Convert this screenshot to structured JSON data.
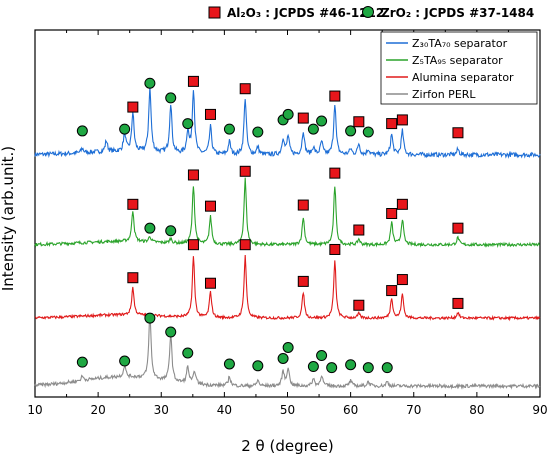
{
  "chart_data": {
    "type": "line",
    "xlabel": "2 θ (degree)",
    "ylabel": "Intensity (arb.unit.)",
    "xlim": [
      10,
      90
    ],
    "x_ticks": [
      "10",
      "20",
      "30",
      "40",
      "50",
      "60",
      "70",
      "80",
      "90"
    ],
    "marker_legend": [
      {
        "label": "Al₂O₃ : JCPDS #46-1212",
        "marker": "square",
        "color": "#e8161b"
      },
      {
        "label": "ZrO₂ : JCPDS #37-1484",
        "marker": "circle",
        "color": "#1fa843"
      }
    ],
    "series": [
      {
        "name": "Z₃₀TA₇₀ separator",
        "color": "#1f6fd6",
        "offset": 0.66,
        "noise": 0.012,
        "peaks": [
          {
            "x": 17.5,
            "h": 0.012
          },
          {
            "x": 21.3,
            "h": 0.03
          },
          {
            "x": 24.2,
            "h": 0.05
          },
          {
            "x": 25.5,
            "h": 0.105
          },
          {
            "x": 28.2,
            "h": 0.175
          },
          {
            "x": 31.5,
            "h": 0.135
          },
          {
            "x": 34.2,
            "h": 0.06
          },
          {
            "x": 35.1,
            "h": 0.175
          },
          {
            "x": 37.8,
            "h": 0.075
          },
          {
            "x": 40.8,
            "h": 0.035
          },
          {
            "x": 43.3,
            "h": 0.155
          },
          {
            "x": 45.3,
            "h": 0.02
          },
          {
            "x": 49.3,
            "h": 0.045
          },
          {
            "x": 50.1,
            "h": 0.05
          },
          {
            "x": 52.5,
            "h": 0.065
          },
          {
            "x": 54.1,
            "h": 0.02
          },
          {
            "x": 55.4,
            "h": 0.035
          },
          {
            "x": 57.5,
            "h": 0.14
          },
          {
            "x": 60.0,
            "h": 0.015
          },
          {
            "x": 61.3,
            "h": 0.03
          },
          {
            "x": 62.8,
            "h": 0.015
          },
          {
            "x": 66.5,
            "h": 0.055
          },
          {
            "x": 68.2,
            "h": 0.065
          },
          {
            "x": 77.0,
            "h": 0.015
          }
        ],
        "al2o3_markers": [
          {
            "x": 25.5,
            "y": 0.79
          },
          {
            "x": 35.1,
            "y": 0.86
          },
          {
            "x": 37.8,
            "y": 0.77
          },
          {
            "x": 43.3,
            "y": 0.84
          },
          {
            "x": 52.5,
            "y": 0.76
          },
          {
            "x": 57.5,
            "y": 0.82
          },
          {
            "x": 61.3,
            "y": 0.75
          },
          {
            "x": 66.5,
            "y": 0.745
          },
          {
            "x": 68.2,
            "y": 0.755
          },
          {
            "x": 77.0,
            "y": 0.72
          }
        ],
        "zro2_markers": [
          {
            "x": 17.5,
            "y": 0.725
          },
          {
            "x": 24.2,
            "y": 0.73
          },
          {
            "x": 28.2,
            "y": 0.855
          },
          {
            "x": 31.5,
            "y": 0.815
          },
          {
            "x": 34.2,
            "y": 0.745
          },
          {
            "x": 40.8,
            "y": 0.73
          },
          {
            "x": 45.3,
            "y": 0.722
          },
          {
            "x": 49.3,
            "y": 0.755
          },
          {
            "x": 50.1,
            "y": 0.77
          },
          {
            "x": 54.1,
            "y": 0.73
          },
          {
            "x": 55.4,
            "y": 0.752
          },
          {
            "x": 60.0,
            "y": 0.725
          },
          {
            "x": 62.8,
            "y": 0.722
          }
        ]
      },
      {
        "name": "Z₅TA₉₅ separator",
        "color": "#2ba32b",
        "offset": 0.415,
        "noise": 0.008,
        "peaks": [
          {
            "x": 25.5,
            "h": 0.085
          },
          {
            "x": 28.2,
            "h": 0.015
          },
          {
            "x": 31.5,
            "h": 0.012
          },
          {
            "x": 35.1,
            "h": 0.16
          },
          {
            "x": 37.8,
            "h": 0.075
          },
          {
            "x": 43.3,
            "h": 0.18
          },
          {
            "x": 52.5,
            "h": 0.075
          },
          {
            "x": 57.5,
            "h": 0.16
          },
          {
            "x": 61.3,
            "h": 0.015
          },
          {
            "x": 66.5,
            "h": 0.06
          },
          {
            "x": 68.2,
            "h": 0.07
          },
          {
            "x": 77.0,
            "h": 0.02
          }
        ],
        "al2o3_markers": [
          {
            "x": 25.5,
            "y": 0.525
          },
          {
            "x": 35.1,
            "y": 0.605
          },
          {
            "x": 37.8,
            "y": 0.52
          },
          {
            "x": 43.3,
            "y": 0.615
          },
          {
            "x": 52.5,
            "y": 0.523
          },
          {
            "x": 57.5,
            "y": 0.61
          },
          {
            "x": 61.3,
            "y": 0.455
          },
          {
            "x": 66.5,
            "y": 0.5
          },
          {
            "x": 68.2,
            "y": 0.525
          },
          {
            "x": 77.0,
            "y": 0.46
          }
        ],
        "zro2_markers": [
          {
            "x": 28.2,
            "y": 0.46
          },
          {
            "x": 31.5,
            "y": 0.453
          }
        ]
      },
      {
        "name": "Alumina separator",
        "color": "#e01b1b",
        "offset": 0.215,
        "noise": 0.007,
        "peaks": [
          {
            "x": 25.5,
            "h": 0.075
          },
          {
            "x": 35.1,
            "h": 0.165
          },
          {
            "x": 37.8,
            "h": 0.07
          },
          {
            "x": 43.3,
            "h": 0.17
          },
          {
            "x": 52.5,
            "h": 0.07
          },
          {
            "x": 57.5,
            "h": 0.155
          },
          {
            "x": 61.3,
            "h": 0.012
          },
          {
            "x": 66.5,
            "h": 0.055
          },
          {
            "x": 68.2,
            "h": 0.065
          },
          {
            "x": 77.0,
            "h": 0.015
          }
        ],
        "al2o3_markers": [
          {
            "x": 25.5,
            "y": 0.325
          },
          {
            "x": 35.1,
            "y": 0.415
          },
          {
            "x": 37.8,
            "y": 0.31
          },
          {
            "x": 43.3,
            "y": 0.415
          },
          {
            "x": 52.5,
            "y": 0.315
          },
          {
            "x": 57.5,
            "y": 0.402
          },
          {
            "x": 61.3,
            "y": 0.25
          },
          {
            "x": 66.5,
            "y": 0.29
          },
          {
            "x": 68.2,
            "y": 0.32
          },
          {
            "x": 77.0,
            "y": 0.255
          }
        ],
        "zro2_markers": []
      },
      {
        "name": "Zirfon PERL",
        "color": "#8c8c8c",
        "offset": 0.03,
        "noise": 0.009,
        "peaks": [
          {
            "x": 17.5,
            "h": 0.012
          },
          {
            "x": 24.2,
            "h": 0.03
          },
          {
            "x": 28.2,
            "h": 0.175
          },
          {
            "x": 31.5,
            "h": 0.13
          },
          {
            "x": 34.2,
            "h": 0.045
          },
          {
            "x": 35.3,
            "h": 0.035
          },
          {
            "x": 40.8,
            "h": 0.025
          },
          {
            "x": 45.3,
            "h": 0.015
          },
          {
            "x": 49.3,
            "h": 0.04
          },
          {
            "x": 50.1,
            "h": 0.05
          },
          {
            "x": 54.1,
            "h": 0.02
          },
          {
            "x": 55.4,
            "h": 0.03
          },
          {
            "x": 60.0,
            "h": 0.015
          },
          {
            "x": 62.8,
            "h": 0.012
          },
          {
            "x": 65.8,
            "h": 0.012
          }
        ],
        "al2o3_markers": [],
        "zro2_markers": [
          {
            "x": 17.5,
            "y": 0.095
          },
          {
            "x": 24.2,
            "y": 0.098
          },
          {
            "x": 28.2,
            "y": 0.215
          },
          {
            "x": 31.5,
            "y": 0.177
          },
          {
            "x": 34.2,
            "y": 0.12
          },
          {
            "x": 40.8,
            "y": 0.09
          },
          {
            "x": 45.3,
            "y": 0.085
          },
          {
            "x": 49.3,
            "y": 0.105
          },
          {
            "x": 50.1,
            "y": 0.135
          },
          {
            "x": 54.1,
            "y": 0.083
          },
          {
            "x": 55.4,
            "y": 0.113
          },
          {
            "x": 57.0,
            "y": 0.08
          },
          {
            "x": 60.0,
            "y": 0.088
          },
          {
            "x": 62.8,
            "y": 0.08
          },
          {
            "x": 65.8,
            "y": 0.08
          }
        ]
      }
    ]
  }
}
